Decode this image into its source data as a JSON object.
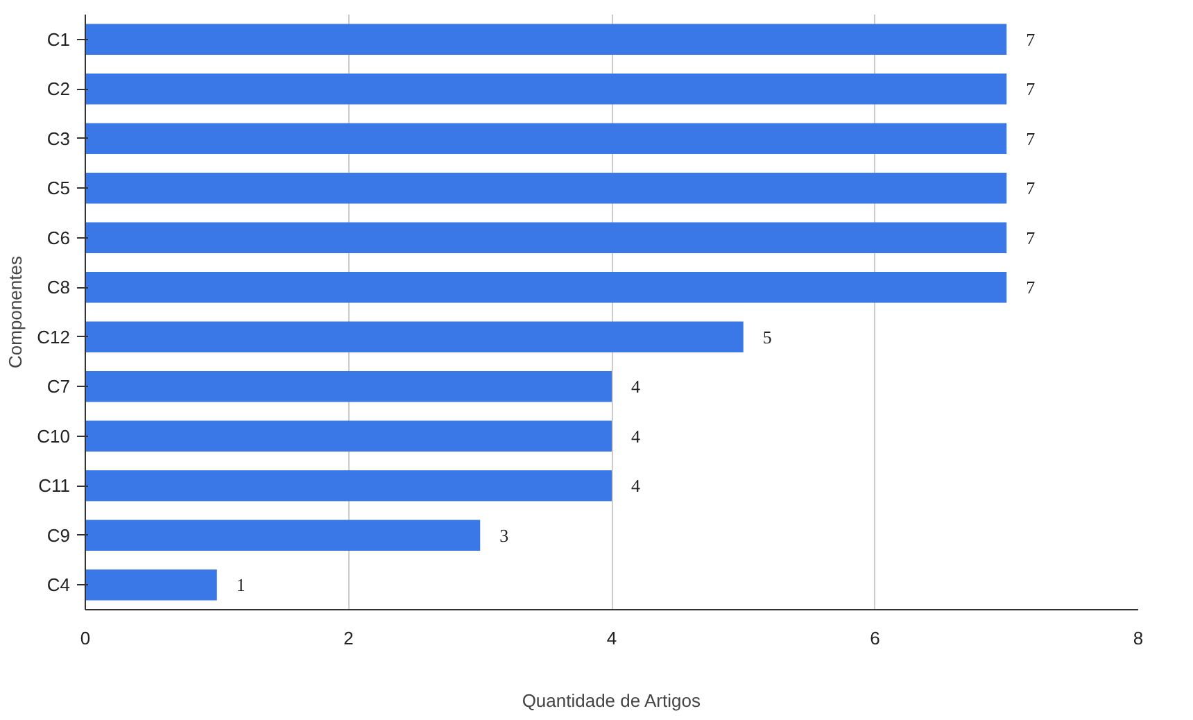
{
  "chart_data": {
    "type": "bar",
    "orientation": "horizontal",
    "xlabel": "Quantidade de Artigos",
    "ylabel": "Componentes",
    "categories": [
      "C1",
      "C2",
      "C3",
      "C5",
      "C6",
      "C8",
      "C12",
      "C7",
      "C10",
      "C11",
      "C9",
      "C4"
    ],
    "values": [
      7,
      7,
      7,
      7,
      7,
      7,
      5,
      4,
      4,
      4,
      3,
      1
    ],
    "color": "#3b78e7",
    "xlim": [
      0,
      8
    ],
    "xticks": [
      0,
      2,
      4,
      6,
      8
    ],
    "grid": "x",
    "data_labels": true
  }
}
